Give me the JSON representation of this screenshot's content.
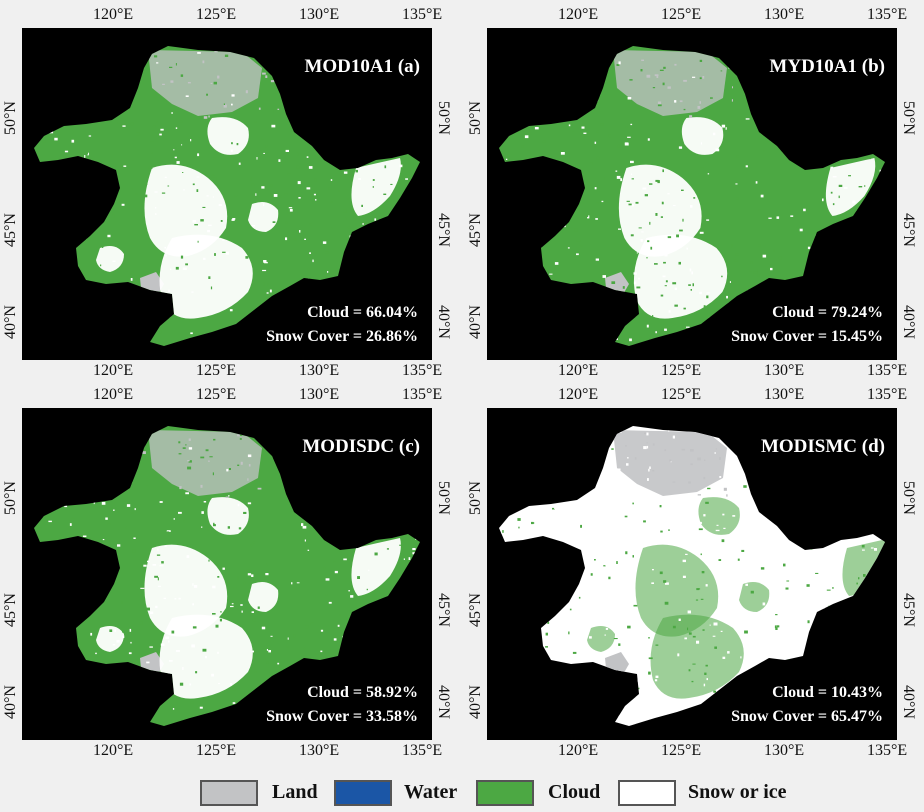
{
  "panels": [
    {
      "title": "MOD10A1 (a)",
      "cloud": "Cloud = 66.04%",
      "snow": "Snow Cover = 26.86%",
      "map": {
        "cloud_pct": 66.04,
        "snow_cover_pct": 26.86,
        "base": "cloud"
      }
    },
    {
      "title": "MYD10A1 (b)",
      "cloud": "Cloud = 79.24%",
      "snow": "Snow Cover = 15.45%",
      "map": {
        "cloud_pct": 79.24,
        "snow_cover_pct": 15.45,
        "base": "cloud"
      }
    },
    {
      "title": "MODISDC (c)",
      "cloud": "Cloud = 58.92%",
      "snow": "Snow Cover = 33.58%",
      "map": {
        "cloud_pct": 58.92,
        "snow_cover_pct": 33.58,
        "base": "cloud"
      }
    },
    {
      "title": "MODISMC (d)",
      "cloud": "Cloud = 10.43%",
      "snow": "Snow Cover = 65.47%",
      "map": {
        "cloud_pct": 10.43,
        "snow_cover_pct": 65.47,
        "base": "snow"
      }
    }
  ],
  "axis": {
    "lon_labels": [
      "120°E",
      "125°E",
      "130°E",
      "135°E"
    ],
    "lat_labels": [
      "50°N",
      "45°N",
      "40°N"
    ]
  },
  "legend": [
    {
      "label": "Land",
      "color": "#c2c3c5"
    },
    {
      "label": "Water",
      "color": "#1b56a6"
    },
    {
      "label": "Cloud",
      "color": "#4ca843"
    },
    {
      "label": "Snow or ice",
      "color": "#ffffff"
    }
  ],
  "colors": {
    "background": "#000000",
    "land": "#c2c3c5",
    "cloud": "#4ca843",
    "snow": "#ffffff"
  }
}
